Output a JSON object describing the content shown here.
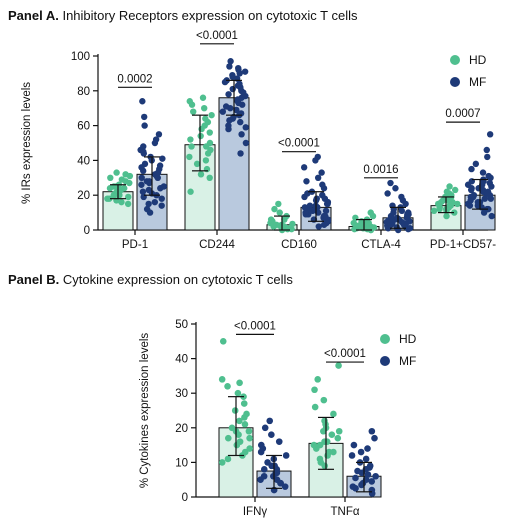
{
  "colors": {
    "hd": "#4fbf8f",
    "mf": "#1e3a78",
    "hd_bar": "#d9f1e6",
    "mf_bar": "#b9c9de"
  },
  "panels": {
    "a": {
      "label": "Panel A.",
      "title": "Inhibitory Receptors expression on cytotoxic T cells"
    },
    "b": {
      "label": "Panel B.",
      "title": "Cytokine expression on cytotoxic T cells"
    }
  },
  "chart_data": [
    {
      "type": "bar",
      "ylabel": "% IRs expression levels",
      "ylim": [
        0,
        100
      ],
      "yticks": [
        0,
        20,
        40,
        60,
        80,
        100
      ],
      "legend": {
        "position": "top-right",
        "entries": [
          "HD",
          "MF"
        ]
      },
      "categories": [
        "PD-1",
        "CD244",
        "CD160",
        "CTLA-4",
        "PD-1+CD57-"
      ],
      "series": [
        {
          "name": "HD",
          "values": [
            22,
            49,
            3,
            2,
            14
          ],
          "sd_low": [
            18,
            34,
            0,
            0,
            10
          ],
          "sd_high": [
            26,
            66,
            8,
            6,
            19
          ]
        },
        {
          "name": "MF",
          "values": [
            32,
            76,
            13,
            7,
            20
          ],
          "sd_low": [
            20,
            66,
            5,
            1,
            12
          ],
          "sd_high": [
            42,
            86,
            22,
            13,
            29
          ]
        }
      ],
      "comparisons": [
        {
          "category": "PD-1",
          "p": "0.0002",
          "y": 82
        },
        {
          "category": "CD244",
          "p": "<0.0001",
          "y": 107
        },
        {
          "category": "CD160",
          "p": "<0.0001",
          "y": 45
        },
        {
          "category": "CTLA-4",
          "p": "0.0016",
          "y": 30
        },
        {
          "category": "PD-1+CD57-",
          "p": "0.0007",
          "y": 62
        }
      ],
      "points": {
        "HD": [
          [
            15,
            18,
            20,
            21,
            22,
            23,
            24,
            25,
            26,
            27,
            28,
            30,
            31,
            32,
            33,
            19,
            17,
            16,
            20,
            24,
            22,
            29,
            25,
            18
          ],
          [
            22,
            30,
            32,
            35,
            38,
            40,
            42,
            44,
            46,
            48,
            50,
            52,
            54,
            56,
            58,
            60,
            62,
            64,
            66,
            68,
            70,
            72,
            74,
            76,
            48
          ],
          [
            0,
            0.5,
            1,
            1,
            1.5,
            2,
            2,
            2.5,
            3,
            3,
            3.5,
            4,
            5,
            6,
            8,
            10,
            12,
            15,
            4,
            2,
            1,
            0.5,
            3,
            6
          ],
          [
            0,
            0,
            0.5,
            1,
            1,
            1.5,
            2,
            2,
            2.5,
            3,
            3,
            4,
            5,
            6,
            7,
            8,
            10,
            1,
            2,
            0.5,
            3,
            1.5,
            2.5,
            4
          ],
          [
            8,
            10,
            11,
            12,
            13,
            14,
            15,
            16,
            17,
            18,
            19,
            20,
            21,
            23,
            25,
            12,
            14,
            16,
            13,
            15,
            11,
            17,
            19,
            22
          ]
        ],
        "MF": [
          [
            10,
            12,
            14,
            16,
            18,
            20,
            22,
            24,
            26,
            28,
            30,
            32,
            34,
            36,
            38,
            40,
            42,
            44,
            46,
            48,
            50,
            55,
            60,
            65,
            74,
            25,
            30,
            35,
            28,
            33,
            37,
            21,
            19,
            27,
            31,
            41,
            45,
            52,
            15,
            23
          ],
          [
            44,
            50,
            55,
            58,
            60,
            62,
            64,
            66,
            68,
            70,
            72,
            74,
            76,
            78,
            80,
            82,
            84,
            86,
            88,
            90,
            92,
            94,
            97,
            69,
            73,
            77,
            81,
            85,
            71,
            75,
            79,
            83,
            67,
            63,
            87,
            91,
            65,
            59,
            89,
            93
          ],
          [
            2,
            3,
            4,
            5,
            6,
            7,
            8,
            9,
            10,
            11,
            12,
            13,
            14,
            15,
            16,
            17,
            18,
            19,
            20,
            22,
            24,
            26,
            28,
            30,
            33,
            36,
            40,
            42,
            6,
            9,
            12,
            15,
            18,
            21,
            10,
            13,
            16,
            8,
            11,
            14
          ],
          [
            0,
            0.5,
            1,
            1.5,
            2,
            2.5,
            3,
            3.5,
            4,
            4.5,
            5,
            5.5,
            6,
            7,
            8,
            9,
            10,
            11,
            12,
            13,
            14,
            15,
            17,
            19,
            21,
            24,
            27,
            3,
            4,
            5,
            6,
            7,
            8,
            2,
            1,
            9,
            10,
            3.5,
            4.5,
            6.5
          ],
          [
            8,
            10,
            12,
            13,
            14,
            15,
            16,
            17,
            18,
            19,
            20,
            21,
            22,
            23,
            24,
            25,
            26,
            27,
            28,
            29,
            30,
            31,
            33,
            35,
            38,
            42,
            46,
            55,
            18,
            20,
            22,
            24,
            16,
            14,
            12,
            26,
            28,
            19,
            21,
            23
          ]
        ]
      }
    },
    {
      "type": "bar",
      "ylabel": "% Cytokines expression levels",
      "ylim": [
        0,
        50
      ],
      "yticks": [
        0,
        10,
        20,
        30,
        40,
        50
      ],
      "legend": {
        "position": "top-right",
        "entries": [
          "HD",
          "MF"
        ]
      },
      "categories": [
        "IFNγ",
        "TNFα"
      ],
      "series": [
        {
          "name": "HD",
          "values": [
            20,
            15.5
          ],
          "sd_low": [
            12,
            8
          ],
          "sd_high": [
            29,
            23
          ]
        },
        {
          "name": "MF",
          "values": [
            7.5,
            6
          ],
          "sd_low": [
            2.5,
            1.5
          ],
          "sd_high": [
            12,
            10
          ]
        }
      ],
      "comparisons": [
        {
          "category": "IFNγ",
          "p": "<0.0001",
          "y": 47
        },
        {
          "category": "TNFα",
          "p": "<0.0001",
          "y": 39
        }
      ],
      "points": {
        "HD": [
          [
            10,
            11,
            12,
            13,
            14,
            15,
            16,
            17,
            18,
            19,
            20,
            21,
            22,
            23,
            24,
            25,
            27,
            29,
            30,
            32,
            33,
            34,
            45,
            17,
            19
          ],
          [
            9,
            10,
            11,
            12,
            13,
            14,
            15,
            16,
            17,
            18,
            19,
            20,
            21,
            22,
            24,
            26,
            28,
            31,
            34,
            38,
            13,
            16,
            19,
            15
          ]
        ],
        "MF": [
          [
            2,
            3,
            4,
            5,
            6,
            7,
            8,
            9,
            10,
            11,
            12,
            13,
            14,
            15,
            16,
            18,
            20,
            22,
            5,
            7,
            9,
            4,
            6,
            8
          ],
          [
            1,
            2,
            3,
            4,
            5,
            6,
            7,
            8,
            9,
            10,
            11,
            12,
            13,
            14,
            15,
            17,
            19,
            2.5,
            4.5,
            6.5,
            3.5,
            5.5,
            7.5,
            8.5
          ]
        ]
      }
    }
  ]
}
